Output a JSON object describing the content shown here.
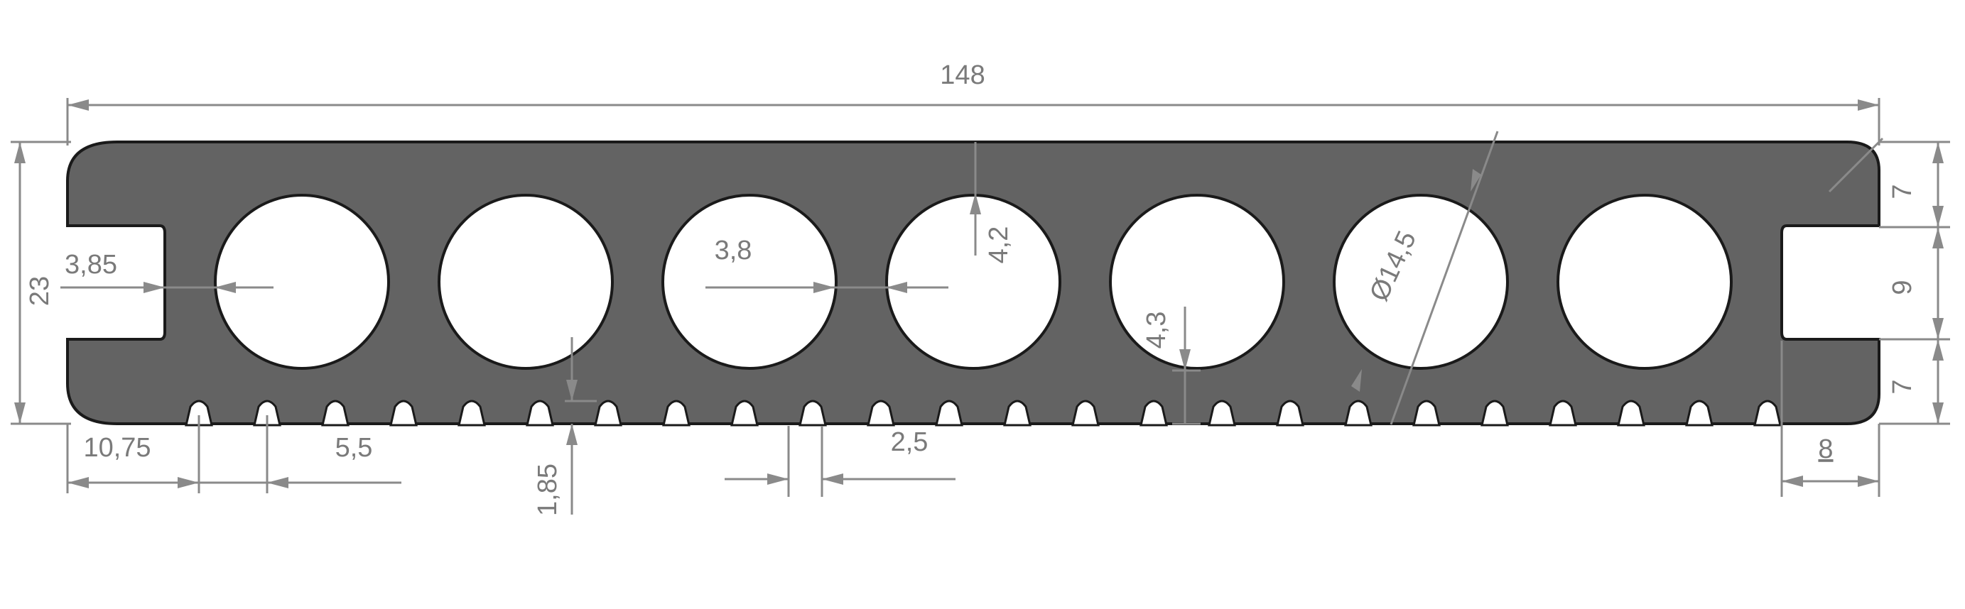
{
  "drawing": {
    "dimensions": {
      "overall_width": "148",
      "overall_height": "23",
      "top_lip": "7",
      "slot_height": "9",
      "bottom_lip": "7",
      "slot_depth_left": "3,85",
      "slot_depth_right": "8",
      "hole_diameter": "Ø14,5",
      "hole_spacing_inner": "3,8",
      "hole_top_wall": "4,2",
      "hole_bottom_wall": "4,3",
      "first_groove_offset": "10,75",
      "groove_pitch": "5,5",
      "groove_depth": "1,85",
      "groove_width": "2,5"
    },
    "hole_count": 7,
    "groove_count": 24,
    "colors": {
      "profile_fill": "#636363",
      "outline": "#1a1a1a",
      "dimension": "#8a8a8a"
    }
  }
}
